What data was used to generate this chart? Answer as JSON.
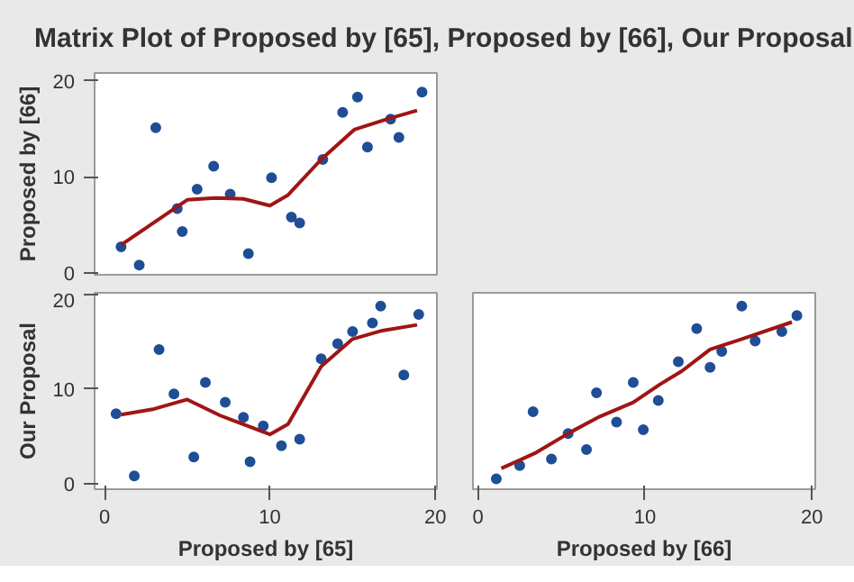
{
  "chart_data": [
    {
      "type": "scatter",
      "title": "Matrix Plot of Proposed by [65], Proposed by [66], Our Proposal",
      "ylabel": "Proposed by [66]",
      "xlim": [
        -0.6,
        20.1
      ],
      "ylim": [
        -0.2,
        20.8
      ],
      "xticks": [
        0,
        10,
        20
      ],
      "yticks": [
        0,
        10,
        20
      ],
      "tick_labels": "y",
      "grid": false,
      "series": [
        {
          "marker": "circle",
          "color": "#1f4e96",
          "x": [
            1.0,
            2.1,
            3.1,
            4.4,
            4.7,
            5.6,
            6.6,
            7.6,
            8.7,
            10.1,
            11.3,
            11.8,
            13.2,
            14.4,
            15.3,
            15.9,
            17.3,
            17.8,
            19.2
          ],
          "values": [
            2.7,
            0.8,
            15.1,
            6.7,
            4.3,
            8.7,
            11.1,
            8.2,
            2.0,
            9.9,
            5.8,
            5.2,
            11.8,
            16.7,
            18.3,
            13.1,
            16.0,
            14.1,
            18.8
          ]
        },
        {
          "type": "line",
          "color": "#a01515",
          "x": [
            1.0,
            5.0,
            6.7,
            8.4,
            10.0,
            11.1,
            13.1,
            15.1,
            17.1,
            18.9
          ],
          "values": [
            2.9,
            7.6,
            7.8,
            7.7,
            7.0,
            8.1,
            11.8,
            14.9,
            16.0,
            16.9
          ]
        }
      ]
    },
    {
      "type": "scatter",
      "xlabel": "Proposed by [65]",
      "ylabel": "Our Proposal",
      "xlim": [
        -0.6,
        20.1
      ],
      "ylim": [
        -0.6,
        20.2
      ],
      "xticks": [
        0,
        10,
        20
      ],
      "yticks": [
        0,
        10,
        20
      ],
      "grid": false,
      "series": [
        {
          "marker": "circle",
          "color": "#1f4e96",
          "x": [
            0.7,
            1.8,
            3.3,
            4.2,
            5.4,
            6.1,
            7.3,
            8.4,
            8.8,
            9.6,
            10.7,
            11.8,
            13.1,
            14.1,
            15.0,
            16.2,
            16.7,
            18.1,
            19.0
          ],
          "values": [
            7.4,
            0.8,
            14.2,
            9.5,
            2.8,
            10.7,
            8.6,
            7.0,
            2.3,
            6.1,
            4.0,
            4.7,
            13.2,
            14.8,
            16.1,
            17.0,
            18.8,
            11.5,
            17.9
          ]
        },
        {
          "type": "line",
          "color": "#a01515",
          "x": [
            1.0,
            3.0,
            5.0,
            7.0,
            10.0,
            11.1,
            13.1,
            15.0,
            16.8,
            18.9
          ],
          "values": [
            7.3,
            7.9,
            8.9,
            7.2,
            5.2,
            6.3,
            12.4,
            15.3,
            16.2,
            16.8
          ]
        }
      ]
    },
    {
      "type": "scatter",
      "xlabel": "Proposed by [66]",
      "xlim": [
        -0.3,
        20.2
      ],
      "ylim": [
        -0.6,
        20.2
      ],
      "xticks": [
        0,
        10,
        20
      ],
      "yticks": [
        0,
        10,
        20
      ],
      "tick_labels": "x",
      "grid": false,
      "series": [
        {
          "marker": "circle",
          "color": "#1f4e96",
          "x": [
            1.1,
            2.5,
            3.3,
            4.4,
            5.4,
            6.5,
            7.1,
            8.3,
            9.3,
            9.9,
            10.8,
            12.0,
            13.1,
            13.9,
            14.6,
            15.8,
            16.6,
            18.2,
            19.1
          ],
          "values": [
            0.5,
            1.9,
            7.6,
            2.6,
            5.3,
            3.6,
            9.6,
            6.5,
            10.7,
            5.7,
            8.8,
            12.9,
            16.4,
            12.3,
            14.0,
            18.8,
            15.1,
            16.1,
            17.8
          ]
        },
        {
          "type": "line",
          "color": "#a01515",
          "x": [
            1.4,
            3.4,
            5.5,
            7.3,
            9.3,
            10.9,
            12.2,
            13.9,
            15.8,
            18.8
          ],
          "values": [
            1.6,
            3.2,
            5.4,
            7.1,
            8.6,
            10.5,
            11.9,
            14.2,
            15.3,
            17.1
          ]
        }
      ]
    }
  ]
}
